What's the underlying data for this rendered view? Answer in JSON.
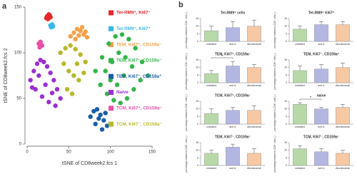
{
  "chart_data": [
    {
      "type": "scatter",
      "panel_label": "a",
      "xlabel": "tSNE of CD8week2.fcs 1",
      "ylabel": "tSNE of CD8week2.fcs 2",
      "xlim": [
        0,
        150
      ],
      "ylim": [
        0,
        150
      ],
      "xticks": [
        0,
        50,
        100,
        150
      ],
      "yticks": [
        0,
        50,
        100,
        150
      ],
      "series": [
        {
          "name": "Tet-RM9⁺, Ki67⁻",
          "color": "#e8262b",
          "x": [
            24,
            26,
            28,
            25,
            27,
            23
          ],
          "y": [
            140,
            142,
            139,
            137,
            141,
            138
          ]
        },
        {
          "name": "Tet-RM9⁺, Ki67⁺",
          "color": "#3ab8e8",
          "x": [
            28,
            30,
            29,
            31
          ],
          "y": [
            130,
            131,
            128,
            129
          ]
        },
        {
          "name": "TEM, Ki67⁺, CD159a⁻",
          "color": "#f6a04a",
          "x": [
            52,
            56,
            60,
            64,
            68,
            72,
            58,
            66,
            70,
            62
          ],
          "y": [
            118,
            122,
            126,
            124,
            120,
            117,
            115,
            128,
            123,
            119
          ]
        },
        {
          "name": "TEM, Ki67⁻, CD159a⁻",
          "color": "#33b54a",
          "x": [
            82,
            90,
            98,
            106,
            114,
            122,
            130,
            138,
            145,
            88,
            96,
            104,
            112,
            120,
            128,
            136,
            94,
            102,
            110,
            118,
            126,
            100,
            108,
            116
          ],
          "y": [
            80,
            95,
            110,
            118,
            120,
            115,
            105,
            90,
            75,
            65,
            55,
            48,
            45,
            50,
            60,
            70,
            80,
            90,
            100,
            95,
            85,
            70,
            65,
            75
          ]
        },
        {
          "name": "TEM, Ki67⁻, CD159a⁺",
          "color": "#1b5ea8",
          "x": [
            76,
            80,
            84,
            88,
            92,
            96,
            82,
            90,
            86,
            94
          ],
          "y": [
            30,
            36,
            38,
            32,
            26,
            20,
            22,
            16,
            28,
            34
          ]
        },
        {
          "name": "Naive",
          "color": "#9b2fd0",
          "x": [
            4,
            8,
            12,
            16,
            20,
            24,
            28,
            32,
            36,
            10,
            18,
            26,
            34,
            14,
            22,
            30,
            6,
            40
          ],
          "y": [
            70,
            80,
            88,
            92,
            90,
            85,
            78,
            70,
            60,
            60,
            52,
            46,
            42,
            75,
            65,
            56,
            62,
            50
          ]
        },
        {
          "name": "TCM, Ki67⁺, CD159a⁻",
          "color": "#e84fa6",
          "x": [
            14,
            16,
            18,
            15
          ],
          "y": [
            110,
            112,
            108,
            106
          ]
        },
        {
          "name": "TCM, Ki67⁻, CD159a⁻",
          "color": "#b7b82a",
          "x": [
            40,
            46,
            52,
            58,
            64,
            70,
            44,
            50,
            56,
            62,
            68,
            48,
            54,
            60
          ],
          "y": [
            100,
            105,
            108,
            104,
            98,
            90,
            88,
            80,
            75,
            70,
            78,
            60,
            55,
            88
          ]
        }
      ]
    },
    {
      "type": "bar",
      "panel_label": "b",
      "title": "Tet-RM9⁺ cells",
      "ylabel": "percentage relative to CD8⁺ cells (-)",
      "categories": [
        "untreated",
        "anti-IL",
        "Atezolizumab"
      ],
      "colors": [
        "#b7d9a8",
        "#b4b6e2",
        "#f7c8a4"
      ],
      "values": [
        7,
        9,
        10
      ],
      "errors": [
        3,
        4,
        4
      ],
      "ylim": [
        0,
        15
      ],
      "yticks": [
        0,
        5,
        10,
        15
      ]
    },
    {
      "type": "bar",
      "title": "Tet-RM9⁺ Ki67⁺",
      "ylabel": "percentage relative to CD8⁺ cells (-)",
      "categories": [
        "untreated",
        "anti-IL",
        "Atezolizumab"
      ],
      "colors": [
        "#b7d9a8",
        "#b4b6e2",
        "#f7c8a4"
      ],
      "values": [
        8,
        11,
        11
      ],
      "errors": [
        2,
        2,
        2
      ],
      "ylim": [
        0,
        15
      ],
      "yticks": [
        0,
        5,
        10,
        15
      ]
    },
    {
      "type": "bar",
      "title": "TEM, Ki67⁺, CD159a⁻",
      "ylabel": "percentage relative to CD8⁺ cells (-)",
      "categories": [
        "untreated",
        "anti-IL",
        "Atezolizumab"
      ],
      "colors": [
        "#b7d9a8",
        "#b4b6e2",
        "#f7c8a4"
      ],
      "values": [
        6,
        11,
        10
      ],
      "errors": [
        2,
        3,
        2
      ],
      "ylim": [
        0,
        15
      ],
      "yticks": [
        0,
        5,
        10,
        15
      ],
      "annotation": "*"
    },
    {
      "type": "bar",
      "title": "TEM, Ki67⁻, CD159a⁺",
      "ylabel": "percentage relative to CD8⁺ cells (-)",
      "categories": [
        "untreated",
        "anti-IL",
        "Atezolizumab"
      ],
      "colors": [
        "#b7d9a8",
        "#b4b6e2",
        "#f7c8a4"
      ],
      "values": [
        8,
        9,
        10
      ],
      "errors": [
        3,
        3,
        3
      ],
      "ylim": [
        0,
        15
      ],
      "yticks": [
        0,
        5,
        10,
        15
      ]
    },
    {
      "type": "bar",
      "title": "TCM, Ki67⁺, CD159a⁻",
      "ylabel": "percentage relative to CD8⁺ cells (-)",
      "categories": [
        "untreated",
        "anti-IL",
        "Atezolizumab"
      ],
      "colors": [
        "#b7d9a8",
        "#b4b6e2",
        "#f7c8a4"
      ],
      "values": [
        7,
        9,
        9
      ],
      "errors": [
        3,
        2,
        3
      ],
      "ylim": [
        0,
        15
      ],
      "yticks": [
        0,
        5,
        10,
        15
      ]
    },
    {
      "type": "bar",
      "title": "naive",
      "ylabel": "percentage relative to CD8⁺ cells (-)",
      "categories": [
        "untreated",
        "anti-IL",
        "Atezolizumab"
      ],
      "colors": [
        "#b7d9a8",
        "#b4b6e2",
        "#f7c8a4"
      ],
      "values": [
        13,
        10,
        11
      ],
      "errors": [
        1,
        1,
        2
      ],
      "ylim": [
        0,
        15
      ],
      "yticks": [
        0,
        5,
        10,
        15
      ],
      "annotation": "*"
    },
    {
      "type": "bar",
      "title": "TEM, Ki67⁻, CD159a⁻",
      "ylabel": "percentage relative to CD8⁺ cells (-)",
      "categories": [
        "untreated",
        "anti-IL",
        "Atezolizumab"
      ],
      "colors": [
        "#b7d9a8",
        "#b4b6e2",
        "#f7c8a4"
      ],
      "values": [
        8,
        12,
        8
      ],
      "errors": [
        2,
        2,
        3
      ],
      "ylim": [
        0,
        15
      ],
      "yticks": [
        0,
        5,
        10,
        15
      ]
    },
    {
      "type": "bar",
      "title": "TCM, Ki67⁻, CD159a⁻",
      "ylabel": "percentage relative to CD8⁺ cells (-)",
      "categories": [
        "untreated",
        "anti-IL",
        "Atezolizumab"
      ],
      "colors": [
        "#b7d9a8",
        "#b4b6e2",
        "#f7c8a4"
      ],
      "values": [
        11,
        9,
        8
      ],
      "errors": [
        2,
        2,
        2
      ],
      "ylim": [
        0,
        15
      ],
      "yticks": [
        0,
        5,
        10,
        15
      ]
    }
  ]
}
